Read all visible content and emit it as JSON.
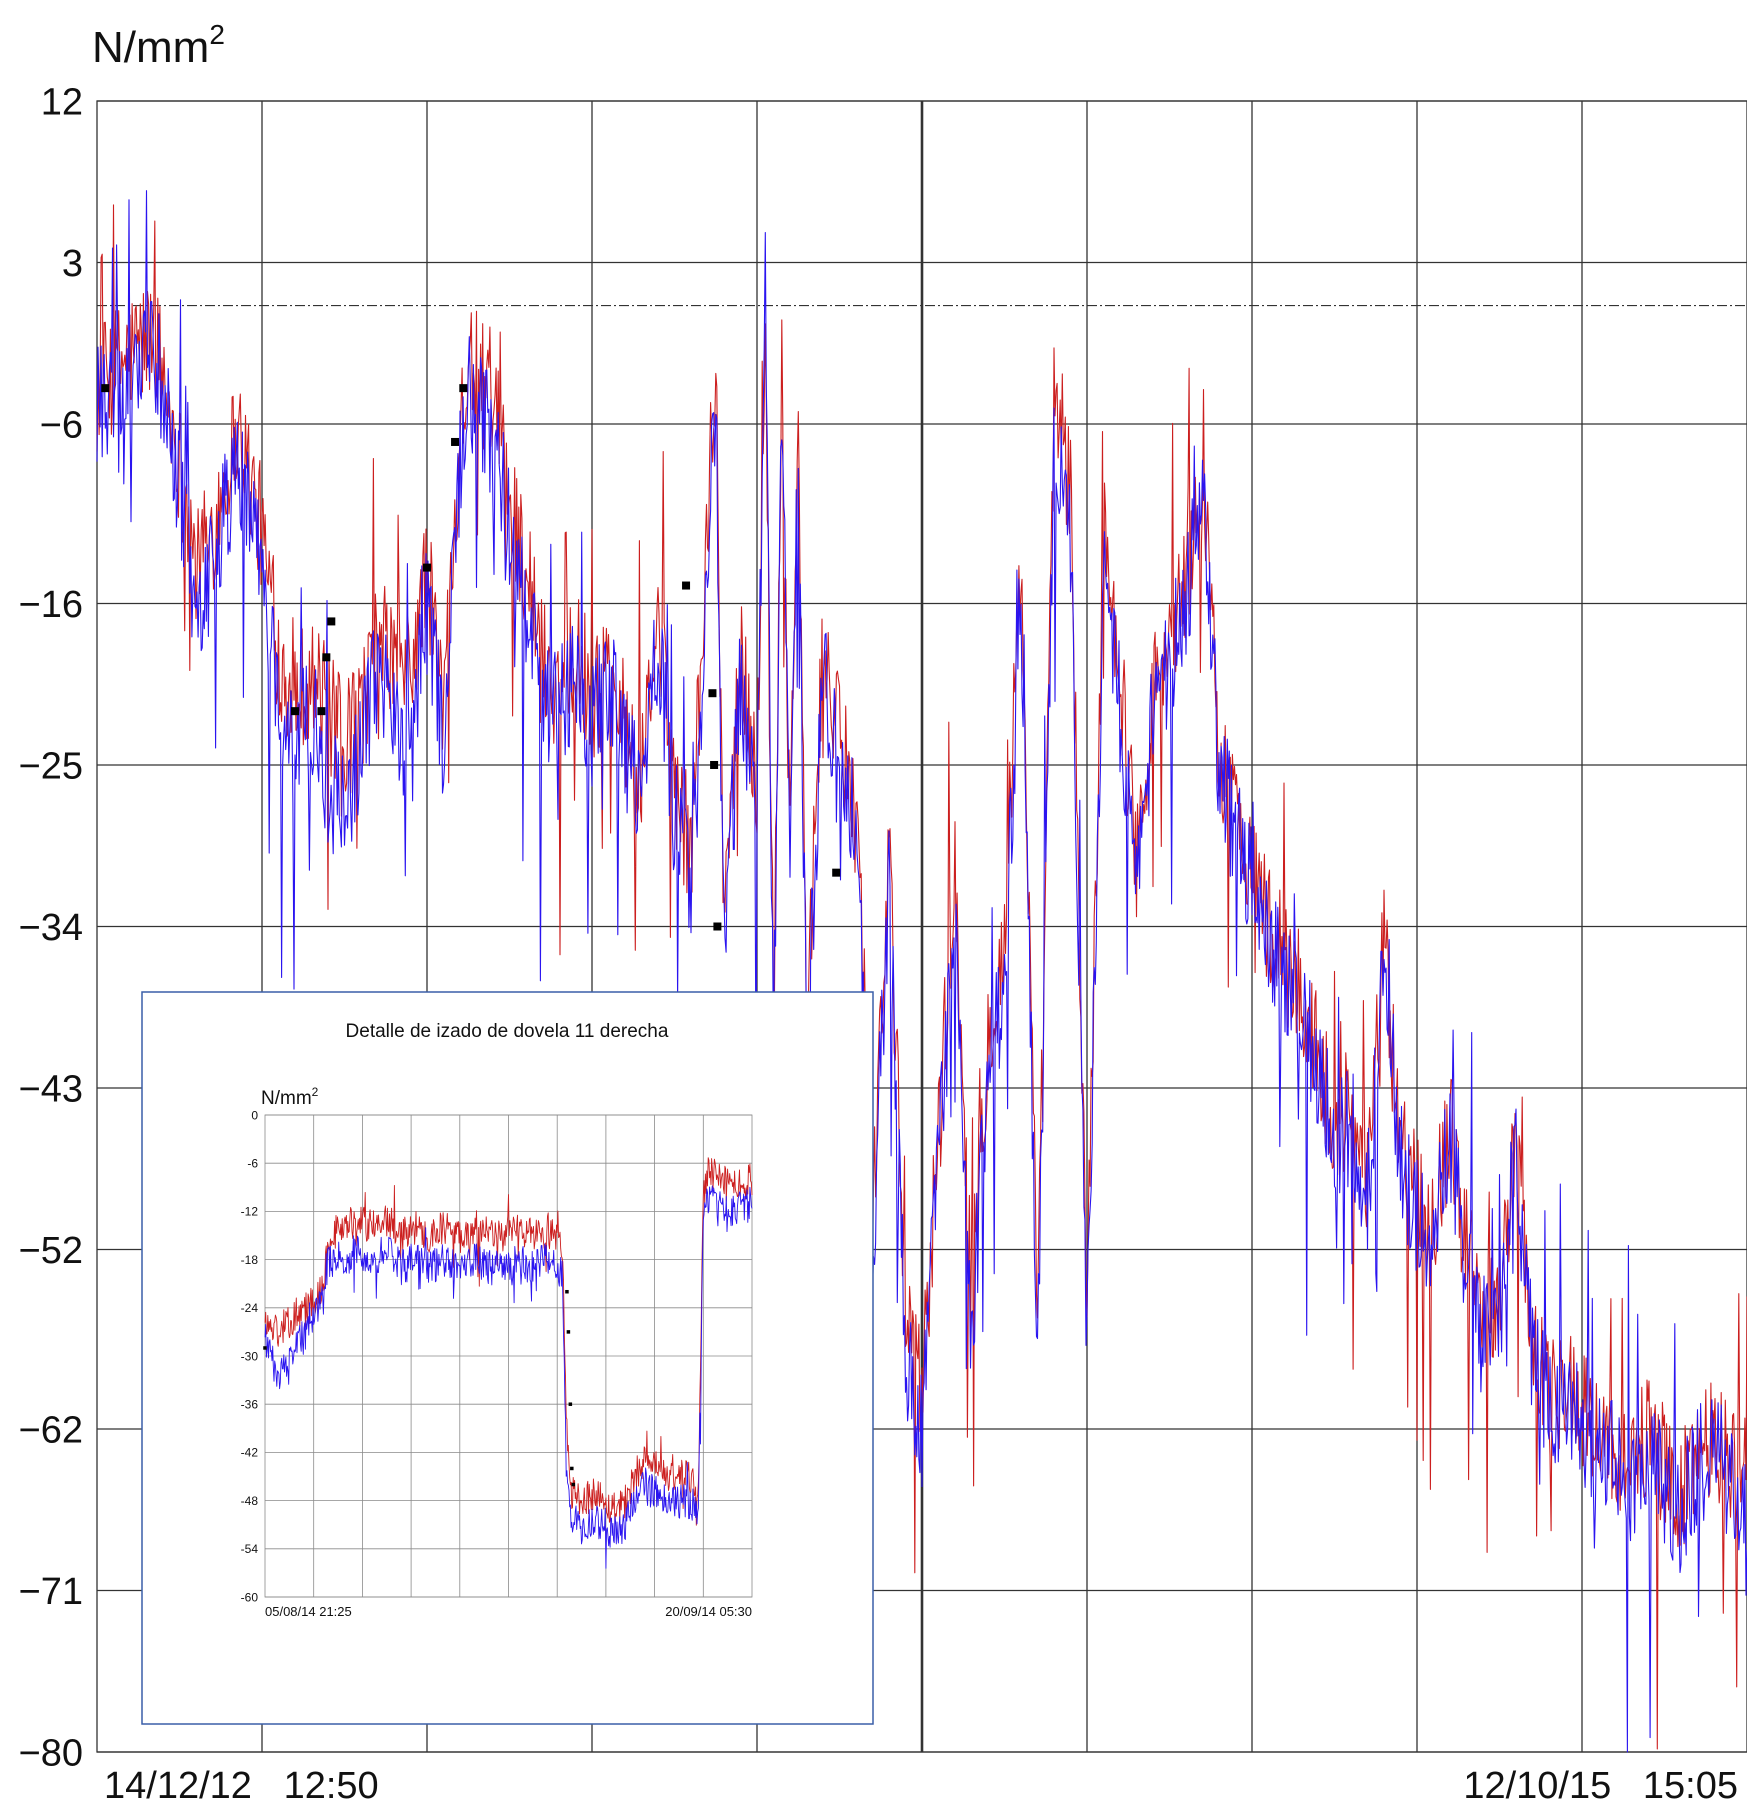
{
  "colors": {
    "series_red": "#cc1f1f",
    "series_blue": "#2a14f0",
    "marker": "#000000",
    "grid": "#333333",
    "inset_frame": "#3a5fa8",
    "inset_grid": "#8a8a8a"
  },
  "chart_data": [
    {
      "type": "line",
      "title": "",
      "ylabel": "N/mm²",
      "ylabel_base": "N/mm",
      "ylabel_sup": "2",
      "ylim": [
        -80,
        12
      ],
      "yticks": [
        12,
        3,
        -6,
        -16,
        -25,
        -34,
        -43,
        -52,
        -62,
        -71,
        -80
      ],
      "ytick_labels": [
        "12",
        "3",
        "−6",
        "−16",
        "−25",
        "−34",
        "−43",
        "−52",
        "−62",
        "−71",
        "−80"
      ],
      "x_start_label": "14/12/12   12:50",
      "x_end_label": "12/10/15   15:05",
      "x_gridlines": 10,
      "xlim": [
        0,
        1
      ],
      "grid": true,
      "reference_line_y": 0.6,
      "series": [
        {
          "color": "#cc1f1f",
          "x": [
            0.0,
            0.02,
            0.035,
            0.05,
            0.06,
            0.07,
            0.085,
            0.1,
            0.11,
            0.12,
            0.13,
            0.14,
            0.15,
            0.16,
            0.17,
            0.18,
            0.19,
            0.2,
            0.21,
            0.22,
            0.225,
            0.235,
            0.245,
            0.25,
            0.26,
            0.27,
            0.28,
            0.29,
            0.3,
            0.31,
            0.32,
            0.33,
            0.34,
            0.35,
            0.36,
            0.37,
            0.375,
            0.38,
            0.39,
            0.4,
            0.405,
            0.41,
            0.415,
            0.42,
            0.425,
            0.43,
            0.44,
            0.45,
            0.46,
            0.47,
            0.48,
            0.49,
            0.5,
            0.51,
            0.52,
            0.53,
            0.54,
            0.55,
            0.56,
            0.57,
            0.58,
            0.59,
            0.6,
            0.61,
            0.62,
            0.63,
            0.64,
            0.65,
            0.66,
            0.67,
            0.68,
            0.69,
            0.7,
            0.71,
            0.72,
            0.73,
            0.74,
            0.75,
            0.76,
            0.77,
            0.78,
            0.79,
            0.8,
            0.81,
            0.82,
            0.83,
            0.84,
            0.85,
            0.86,
            0.87,
            0.88,
            0.89,
            0.9,
            0.91,
            0.92,
            0.93,
            0.94,
            0.95,
            0.96,
            0.97,
            0.98,
            0.99,
            1.0
          ],
          "y": [
            -4,
            -2,
            -1,
            -8,
            -14,
            -12,
            -6,
            -12,
            -19,
            -21,
            -20,
            -22,
            -24,
            -22,
            -18,
            -19,
            -20,
            -14,
            -22,
            -6,
            -3,
            -4,
            -7,
            -10,
            -14,
            -19,
            -21,
            -18,
            -22,
            -19,
            -23,
            -26,
            -17,
            -26,
            -30,
            -12,
            -3,
            -33,
            -19,
            -26,
            0,
            -40,
            -2,
            -29,
            -5,
            -40,
            -18,
            -24,
            -26,
            -50,
            -30,
            -56,
            -60,
            -45,
            -31,
            -55,
            -40,
            -35,
            -13,
            -56,
            -5,
            -10,
            -55,
            -12,
            -20,
            -30,
            -21,
            -18,
            -15,
            -9,
            -24,
            -28,
            -30,
            -34,
            -36,
            -38,
            -41,
            -45,
            -44,
            -48,
            -35,
            -46,
            -49,
            -50,
            -45,
            -52,
            -56,
            -54,
            -46,
            -57,
            -60,
            -60,
            -61,
            -62,
            -63,
            -65,
            -62,
            -64,
            -66,
            -63,
            -62,
            -64,
            -65
          ]
        },
        {
          "color": "#2a14f0",
          "x": [
            0.0,
            0.02,
            0.035,
            0.05,
            0.06,
            0.07,
            0.085,
            0.1,
            0.11,
            0.12,
            0.13,
            0.14,
            0.15,
            0.16,
            0.17,
            0.18,
            0.19,
            0.2,
            0.21,
            0.22,
            0.225,
            0.235,
            0.245,
            0.25,
            0.26,
            0.27,
            0.28,
            0.29,
            0.3,
            0.31,
            0.32,
            0.33,
            0.34,
            0.35,
            0.36,
            0.37,
            0.375,
            0.38,
            0.39,
            0.4,
            0.405,
            0.41,
            0.415,
            0.42,
            0.425,
            0.43,
            0.44,
            0.45,
            0.46,
            0.47,
            0.48,
            0.49,
            0.5,
            0.51,
            0.52,
            0.53,
            0.54,
            0.55,
            0.56,
            0.57,
            0.58,
            0.59,
            0.6,
            0.61,
            0.62,
            0.63,
            0.64,
            0.65,
            0.66,
            0.67,
            0.68,
            0.69,
            0.7,
            0.71,
            0.72,
            0.73,
            0.74,
            0.75,
            0.76,
            0.77,
            0.78,
            0.79,
            0.8,
            0.81,
            0.82,
            0.83,
            0.84,
            0.85,
            0.86,
            0.87,
            0.88,
            0.89,
            0.9,
            0.91,
            0.92,
            0.93,
            0.94,
            0.95,
            0.96,
            0.97,
            0.98,
            0.99,
            1.0
          ],
          "y": [
            -5,
            -3,
            -2,
            -10,
            -16,
            -14,
            -8,
            -14,
            -21,
            -24,
            -22,
            -26,
            -28,
            -24,
            -20,
            -22,
            -25,
            -16,
            -24,
            -8,
            -4,
            -6,
            -9,
            -12,
            -16,
            -21,
            -22,
            -20,
            -23,
            -20,
            -24,
            -27,
            -18,
            -28,
            -32,
            -14,
            -5,
            -35,
            -21,
            -28,
            2,
            -42,
            -4,
            -31,
            -7,
            -42,
            -20,
            -26,
            -28,
            -52,
            -32,
            -58,
            -62,
            -47,
            -33,
            -57,
            -42,
            -37,
            -15,
            -58,
            -7,
            -12,
            -57,
            -14,
            -22,
            -32,
            -22,
            -19,
            -16,
            -10,
            -25,
            -29,
            -31,
            -35,
            -37,
            -39,
            -42,
            -46,
            -45,
            -49,
            -36,
            -47,
            -50,
            -51,
            -46,
            -53,
            -57,
            -55,
            -47,
            -58,
            -61,
            -61,
            -62,
            -63,
            -64,
            -66,
            -63,
            -65,
            -67,
            -64,
            -63,
            -65,
            -66
          ]
        }
      ],
      "markers": {
        "x": [
          0.005,
          0.12,
          0.136,
          0.139,
          0.142,
          0.2,
          0.217,
          0.222,
          0.357,
          0.373,
          0.374,
          0.376,
          0.448
        ],
        "y": [
          -4,
          -22,
          -22,
          -19,
          -17,
          -14,
          -7,
          -4,
          -15,
          -21,
          -25,
          -34,
          -31
        ]
      }
    },
    {
      "type": "line",
      "title": "Detalle de izado de dovela 11 derecha",
      "ylabel": "N/mm²",
      "ylabel_base": "N/mm",
      "ylabel_sup": "2",
      "ylim": [
        -60,
        0
      ],
      "yticks": [
        0,
        -6,
        -12,
        -18,
        -24,
        -30,
        -36,
        -42,
        -48,
        -54,
        -60
      ],
      "x_start_label": "05/08/14 21:25",
      "x_end_label": "20/09/14 05:30",
      "x_gridlines": 10,
      "xlim": [
        0,
        1
      ],
      "grid": true,
      "series": [
        {
          "color": "#cc1f1f",
          "x": [
            0.0,
            0.03,
            0.06,
            0.09,
            0.12,
            0.13,
            0.16,
            0.19,
            0.22,
            0.25,
            0.28,
            0.31,
            0.34,
            0.37,
            0.4,
            0.43,
            0.46,
            0.49,
            0.52,
            0.55,
            0.58,
            0.6,
            0.61,
            0.62,
            0.63,
            0.65,
            0.68,
            0.71,
            0.74,
            0.77,
            0.8,
            0.83,
            0.86,
            0.89,
            0.9,
            0.91,
            0.93,
            0.96,
            1.0
          ],
          "y": [
            -26,
            -27,
            -25,
            -24,
            -21,
            -15,
            -14,
            -13,
            -14,
            -13,
            -15,
            -14,
            -15,
            -14,
            -15,
            -14,
            -15,
            -15,
            -14,
            -15,
            -14,
            -15,
            -16,
            -40,
            -47,
            -48,
            -47,
            -49,
            -48,
            -43,
            -44,
            -45,
            -45,
            -46,
            -10,
            -7,
            -8,
            -9,
            -8
          ]
        },
        {
          "color": "#2a14f0",
          "x": [
            0.0,
            0.03,
            0.06,
            0.09,
            0.12,
            0.13,
            0.16,
            0.19,
            0.22,
            0.25,
            0.28,
            0.31,
            0.34,
            0.37,
            0.4,
            0.43,
            0.46,
            0.49,
            0.52,
            0.55,
            0.58,
            0.6,
            0.61,
            0.62,
            0.63,
            0.65,
            0.68,
            0.71,
            0.74,
            0.77,
            0.8,
            0.83,
            0.86,
            0.89,
            0.9,
            0.91,
            0.93,
            0.96,
            1.0
          ],
          "y": [
            -28,
            -33,
            -29,
            -27,
            -23,
            -18,
            -18,
            -17,
            -18,
            -17,
            -19,
            -18,
            -19,
            -18,
            -19,
            -18,
            -19,
            -19,
            -18,
            -19,
            -18,
            -19,
            -20,
            -45,
            -50,
            -52,
            -50,
            -52,
            -51,
            -46,
            -47,
            -48,
            -48,
            -49,
            -13,
            -10,
            -11,
            -12,
            -11
          ]
        }
      ],
      "markers": {
        "x": [
          0.0,
          0.62,
          0.623,
          0.627,
          0.63,
          0.633
        ],
        "y": [
          -29,
          -22,
          -27,
          -36,
          -44,
          -46
        ]
      }
    }
  ]
}
